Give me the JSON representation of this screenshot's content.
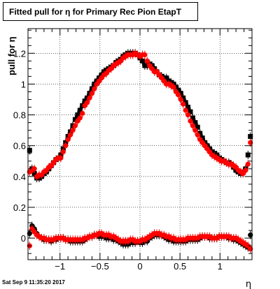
{
  "title": "Fitted pull for  η for Primary Rec Pion EtapT",
  "timestamp": "Sat Sep  9 11:35:20 2017",
  "chart_data": {
    "type": "scatter",
    "xlabel": "η",
    "ylabel": "pull for  η",
    "xlim": [
      -1.4,
      1.4
    ],
    "ylim": [
      -0.14,
      1.36
    ],
    "grid": true,
    "x_ticks": [
      -1,
      -0.5,
      0,
      0.5,
      1
    ],
    "x_tick_labels": [
      "−1",
      "−0.5",
      "0",
      "0.5",
      "1"
    ],
    "y_ticks": [
      0,
      0.2,
      0.4,
      0.6,
      0.8,
      1.0,
      1.2
    ],
    "y_tick_labels": [
      "0",
      "0.2",
      "0.4",
      "0.6",
      "0.8",
      "1",
      "1.2"
    ],
    "series": [
      {
        "color": "#000000",
        "marker": "square",
        "x": [
          -1.38,
          -1.35,
          -1.32,
          -1.29,
          -1.26,
          -1.23,
          -1.2,
          -1.17,
          -1.14,
          -1.11,
          -1.08,
          -1.05,
          -1.02,
          -0.99,
          -0.96,
          -0.93,
          -0.9,
          -0.87,
          -0.84,
          -0.81,
          -0.78,
          -0.75,
          -0.72,
          -0.69,
          -0.66,
          -0.63,
          -0.6,
          -0.57,
          -0.54,
          -0.51,
          -0.48,
          -0.45,
          -0.42,
          -0.39,
          -0.36,
          -0.33,
          -0.3,
          -0.27,
          -0.24,
          -0.21,
          -0.18,
          -0.15,
          -0.12,
          -0.09,
          -0.06,
          -0.03,
          0.0,
          0.03,
          0.06,
          0.09,
          0.12,
          0.15,
          0.18,
          0.21,
          0.24,
          0.27,
          0.3,
          0.33,
          0.36,
          0.39,
          0.42,
          0.45,
          0.48,
          0.51,
          0.54,
          0.57,
          0.6,
          0.63,
          0.66,
          0.69,
          0.72,
          0.75,
          0.78,
          0.81,
          0.84,
          0.87,
          0.9,
          0.93,
          0.96,
          0.99,
          1.02,
          1.05,
          1.08,
          1.11,
          1.14,
          1.17,
          1.2,
          1.23,
          1.26,
          1.29,
          1.32,
          1.35,
          1.38
        ],
        "y": [
          0.57,
          0.45,
          0.42,
          0.39,
          0.39,
          0.4,
          0.42,
          0.43,
          0.45,
          0.47,
          0.49,
          0.51,
          0.52,
          0.54,
          0.58,
          0.62,
          0.66,
          0.69,
          0.73,
          0.77,
          0.8,
          0.83,
          0.86,
          0.89,
          0.91,
          0.94,
          0.97,
          1.0,
          1.02,
          1.04,
          1.06,
          1.08,
          1.09,
          1.1,
          1.11,
          1.12,
          1.14,
          1.15,
          1.16,
          1.18,
          1.19,
          1.2,
          1.2,
          1.2,
          1.2,
          1.19,
          1.17,
          1.15,
          1.12,
          1.12,
          1.13,
          1.12,
          1.1,
          1.08,
          1.06,
          1.05,
          1.04,
          1.04,
          1.02,
          1.01,
          1.0,
          0.98,
          0.96,
          0.94,
          0.91,
          0.88,
          0.85,
          0.82,
          0.78,
          0.75,
          0.72,
          0.68,
          0.65,
          0.62,
          0.6,
          0.58,
          0.56,
          0.55,
          0.54,
          0.52,
          0.51,
          0.5,
          0.49,
          0.49,
          0.48,
          0.46,
          0.44,
          0.43,
          0.42,
          0.43,
          0.45,
          0.54,
          0.66
        ]
      },
      {
        "color": "#ff0000",
        "marker": "circle",
        "x": [
          -1.38,
          -1.35,
          -1.32,
          -1.29,
          -1.26,
          -1.23,
          -1.2,
          -1.17,
          -1.14,
          -1.11,
          -1.08,
          -1.05,
          -1.02,
          -0.99,
          -0.96,
          -0.93,
          -0.9,
          -0.87,
          -0.84,
          -0.81,
          -0.78,
          -0.75,
          -0.72,
          -0.69,
          -0.66,
          -0.63,
          -0.6,
          -0.57,
          -0.54,
          -0.51,
          -0.48,
          -0.45,
          -0.42,
          -0.39,
          -0.36,
          -0.33,
          -0.3,
          -0.27,
          -0.24,
          -0.21,
          -0.18,
          -0.15,
          -0.12,
          -0.09,
          -0.06,
          -0.03,
          0.0,
          0.03,
          0.06,
          0.09,
          0.12,
          0.15,
          0.18,
          0.21,
          0.24,
          0.27,
          0.3,
          0.33,
          0.36,
          0.39,
          0.42,
          0.45,
          0.48,
          0.51,
          0.54,
          0.57,
          0.6,
          0.63,
          0.66,
          0.69,
          0.72,
          0.75,
          0.78,
          0.81,
          0.84,
          0.87,
          0.9,
          0.93,
          0.96,
          0.99,
          1.02,
          1.05,
          1.08,
          1.11,
          1.14,
          1.17,
          1.2,
          1.23,
          1.26,
          1.29,
          1.32,
          1.35,
          1.38
        ],
        "y": [
          0.43,
          0.44,
          0.45,
          0.4,
          0.41,
          0.41,
          0.43,
          0.44,
          0.46,
          0.47,
          0.49,
          0.51,
          0.52,
          0.52,
          0.56,
          0.6,
          0.64,
          0.67,
          0.7,
          0.73,
          0.76,
          0.78,
          0.81,
          0.86,
          0.88,
          0.91,
          0.94,
          0.97,
          1.0,
          1.02,
          1.04,
          1.06,
          1.07,
          1.09,
          1.1,
          1.12,
          1.13,
          1.14,
          1.15,
          1.17,
          1.18,
          1.19,
          1.19,
          1.19,
          1.2,
          1.19,
          1.18,
          1.19,
          1.19,
          1.15,
          1.12,
          1.1,
          1.08,
          1.08,
          1.06,
          1.04,
          1.02,
          1.0,
          1.0,
          0.99,
          0.98,
          0.95,
          0.93,
          0.9,
          0.87,
          0.83,
          0.8,
          0.76,
          0.73,
          0.7,
          0.67,
          0.64,
          0.62,
          0.6,
          0.58,
          0.56,
          0.54,
          0.53,
          0.52,
          0.51,
          0.5,
          0.5,
          0.49,
          0.48,
          0.48,
          0.47,
          0.46,
          0.44,
          0.43,
          0.42,
          0.44,
          0.48,
          0.62
        ]
      },
      {
        "color": "#000000",
        "marker": "circle",
        "x": [
          -1.38,
          -1.35,
          -1.32,
          -1.29,
          -1.26,
          -1.23,
          -1.2,
          -1.17,
          -1.14,
          -1.11,
          -1.08,
          -1.05,
          -1.02,
          -0.99,
          -0.96,
          -0.93,
          -0.9,
          -0.87,
          -0.84,
          -0.81,
          -0.78,
          -0.75,
          -0.72,
          -0.69,
          -0.66,
          -0.63,
          -0.6,
          -0.57,
          -0.54,
          -0.51,
          -0.48,
          -0.45,
          -0.42,
          -0.39,
          -0.36,
          -0.33,
          -0.3,
          -0.27,
          -0.24,
          -0.21,
          -0.18,
          -0.15,
          -0.12,
          -0.09,
          -0.06,
          -0.03,
          0.0,
          0.03,
          0.06,
          0.09,
          0.12,
          0.15,
          0.18,
          0.21,
          0.24,
          0.27,
          0.3,
          0.33,
          0.36,
          0.39,
          0.42,
          0.45,
          0.48,
          0.51,
          0.54,
          0.57,
          0.6,
          0.63,
          0.66,
          0.69,
          0.72,
          0.75,
          0.78,
          0.81,
          0.84,
          0.87,
          0.9,
          0.93,
          0.96,
          0.99,
          1.02,
          1.05,
          1.08,
          1.11,
          1.14,
          1.17,
          1.2,
          1.23,
          1.26,
          1.29,
          1.32,
          1.35,
          1.38
        ],
        "y": [
          0.03,
          0.08,
          0.06,
          0.03,
          0.01,
          0.0,
          -0.01,
          -0.01,
          -0.01,
          -0.02,
          -0.01,
          -0.01,
          0.0,
          0.0,
          0.0,
          -0.01,
          -0.01,
          -0.02,
          -0.02,
          -0.02,
          -0.02,
          -0.02,
          -0.02,
          -0.01,
          0.0,
          0.01,
          0.01,
          0.02,
          0.02,
          0.01,
          0.01,
          0.01,
          0.0,
          0.0,
          0.0,
          -0.01,
          -0.01,
          -0.02,
          -0.03,
          -0.04,
          -0.04,
          -0.04,
          -0.03,
          -0.03,
          -0.03,
          -0.02,
          -0.03,
          -0.03,
          -0.02,
          -0.02,
          0.0,
          0.01,
          0.02,
          0.02,
          0.02,
          0.02,
          0.01,
          0.0,
          -0.01,
          -0.01,
          -0.02,
          -0.02,
          -0.02,
          -0.02,
          -0.02,
          -0.02,
          -0.01,
          -0.01,
          -0.01,
          -0.01,
          -0.01,
          0.0,
          0.01,
          0.01,
          0.01,
          0.0,
          0.0,
          0.0,
          0.0,
          0.01,
          0.01,
          0.01,
          0.01,
          0.0,
          0.0,
          -0.01,
          -0.01,
          -0.02,
          -0.03,
          -0.04,
          -0.05,
          -0.06,
          0.02
        ]
      },
      {
        "color": "#ff0000",
        "marker": "circle",
        "x": [
          -1.38,
          -1.35,
          -1.32,
          -1.29,
          -1.26,
          -1.23,
          -1.2,
          -1.17,
          -1.14,
          -1.11,
          -1.08,
          -1.05,
          -1.02,
          -0.99,
          -0.96,
          -0.93,
          -0.9,
          -0.87,
          -0.84,
          -0.81,
          -0.78,
          -0.75,
          -0.72,
          -0.69,
          -0.66,
          -0.63,
          -0.6,
          -0.57,
          -0.54,
          -0.51,
          -0.48,
          -0.45,
          -0.42,
          -0.39,
          -0.36,
          -0.33,
          -0.3,
          -0.27,
          -0.24,
          -0.21,
          -0.18,
          -0.15,
          -0.12,
          -0.09,
          -0.06,
          -0.03,
          0.0,
          0.03,
          0.06,
          0.09,
          0.12,
          0.15,
          0.18,
          0.21,
          0.24,
          0.27,
          0.3,
          0.33,
          0.36,
          0.39,
          0.42,
          0.45,
          0.48,
          0.51,
          0.54,
          0.57,
          0.6,
          0.63,
          0.66,
          0.69,
          0.72,
          0.75,
          0.78,
          0.81,
          0.84,
          0.87,
          0.9,
          0.93,
          0.96,
          0.99,
          1.02,
          1.05,
          1.08,
          1.11,
          1.14,
          1.17,
          1.2,
          1.23,
          1.26,
          1.29,
          1.32,
          1.35,
          1.38
        ],
        "y": [
          -0.05,
          0.06,
          0.04,
          0.02,
          0.01,
          0.0,
          0.0,
          -0.01,
          -0.01,
          -0.01,
          -0.01,
          0.0,
          0.0,
          0.0,
          0.0,
          -0.01,
          -0.01,
          -0.01,
          -0.01,
          -0.01,
          -0.01,
          -0.01,
          -0.01,
          0.0,
          0.0,
          0.01,
          0.01,
          0.02,
          0.02,
          0.03,
          0.03,
          0.02,
          0.02,
          0.02,
          0.01,
          0.01,
          0.0,
          -0.01,
          -0.02,
          -0.02,
          -0.02,
          -0.02,
          -0.01,
          -0.01,
          -0.02,
          -0.02,
          -0.02,
          -0.01,
          -0.01,
          0.0,
          0.01,
          0.02,
          0.03,
          0.03,
          0.03,
          0.02,
          0.02,
          0.01,
          0.01,
          0.0,
          0.0,
          -0.01,
          -0.01,
          -0.01,
          -0.01,
          -0.01,
          0.0,
          0.0,
          0.0,
          0.0,
          0.0,
          0.01,
          0.01,
          0.01,
          0.01,
          0.01,
          0.0,
          0.0,
          0.0,
          0.01,
          0.01,
          0.01,
          0.01,
          0.01,
          0.0,
          0.0,
          0.0,
          -0.01,
          -0.02,
          -0.03,
          -0.04,
          -0.05,
          -0.07
        ]
      }
    ]
  }
}
